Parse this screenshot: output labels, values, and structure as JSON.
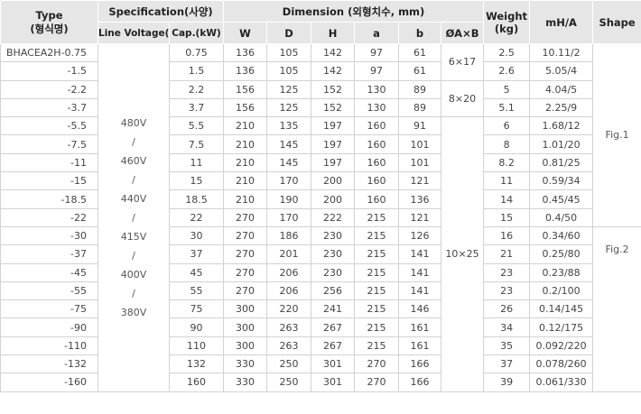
{
  "header": {
    "type": "Type",
    "type_kr": "(형식명)",
    "specification": "Specification(사양)",
    "line_voltage": "Line Voltage(V)",
    "capacity": "Cap.(kW)",
    "dimension": "Dimension (외형치수, mm)",
    "w": "W",
    "d": "D",
    "h": "H",
    "a": "a",
    "b": "b",
    "axb": "ØA×B",
    "weight": "Weight",
    "weight_unit": "(kg)",
    "mh": "mH/A",
    "shape": "Shape"
  },
  "voltage": [
    "480V",
    "/",
    "460V",
    "/",
    "440V",
    "/",
    "415V",
    "/",
    "400V",
    "/",
    "380V"
  ],
  "axb_groups": [
    "6×17",
    "8×20",
    "10×25"
  ],
  "shapes": [
    "Fig.1",
    "Fig.2"
  ],
  "rows": [
    {
      "type": "BHACEA2H-0.75",
      "cap": "0.75",
      "w": "136",
      "d": "105",
      "h": "142",
      "a": "97",
      "b": "61",
      "weight": "2.5",
      "mh": "10.11/2"
    },
    {
      "type": "-1.5",
      "cap": "1.5",
      "w": "136",
      "d": "105",
      "h": "142",
      "a": "97",
      "b": "61",
      "weight": "2.6",
      "mh": "5.05/4"
    },
    {
      "type": "-2.2",
      "cap": "2.2",
      "w": "156",
      "d": "125",
      "h": "152",
      "a": "130",
      "b": "89",
      "weight": "5",
      "mh": "4.04/5"
    },
    {
      "type": "-3.7",
      "cap": "3.7",
      "w": "156",
      "d": "125",
      "h": "152",
      "a": "130",
      "b": "89",
      "weight": "5.1",
      "mh": "2.25/9"
    },
    {
      "type": "-5.5",
      "cap": "5.5",
      "w": "210",
      "d": "135",
      "h": "197",
      "a": "160",
      "b": "91",
      "weight": "6",
      "mh": "1.68/12"
    },
    {
      "type": "-7.5",
      "cap": "7.5",
      "w": "210",
      "d": "145",
      "h": "197",
      "a": "160",
      "b": "101",
      "weight": "8",
      "mh": "1.01/20"
    },
    {
      "type": "-11",
      "cap": "11",
      "w": "210",
      "d": "145",
      "h": "197",
      "a": "160",
      "b": "101",
      "weight": "8.2",
      "mh": "0.81/25"
    },
    {
      "type": "-15",
      "cap": "15",
      "w": "210",
      "d": "170",
      "h": "200",
      "a": "160",
      "b": "121",
      "weight": "11",
      "mh": "0.59/34"
    },
    {
      "type": "-18.5",
      "cap": "18.5",
      "w": "210",
      "d": "190",
      "h": "200",
      "a": "160",
      "b": "136",
      "weight": "14",
      "mh": "0.45/45"
    },
    {
      "type": "-22",
      "cap": "22",
      "w": "270",
      "d": "170",
      "h": "222",
      "a": "215",
      "b": "121",
      "weight": "15",
      "mh": "0.4/50"
    },
    {
      "type": "-30",
      "cap": "30",
      "w": "270",
      "d": "186",
      "h": "230",
      "a": "215",
      "b": "126",
      "weight": "16",
      "mh": "0.34/60"
    },
    {
      "type": "-37",
      "cap": "37",
      "w": "270",
      "d": "201",
      "h": "230",
      "a": "215",
      "b": "141",
      "weight": "21",
      "mh": "0.25/80"
    },
    {
      "type": "-45",
      "cap": "45",
      "w": "270",
      "d": "206",
      "h": "230",
      "a": "215",
      "b": "141",
      "weight": "23",
      "mh": "0.23/88"
    },
    {
      "type": "-55",
      "cap": "55",
      "w": "270",
      "d": "206",
      "h": "256",
      "a": "215",
      "b": "141",
      "weight": "23",
      "mh": "0.2/100"
    },
    {
      "type": "-75",
      "cap": "75",
      "w": "300",
      "d": "220",
      "h": "241",
      "a": "215",
      "b": "146",
      "weight": "26",
      "mh": "0.14/145"
    },
    {
      "type": "-90",
      "cap": "90",
      "w": "300",
      "d": "263",
      "h": "267",
      "a": "215",
      "b": "161",
      "weight": "34",
      "mh": "0.12/175"
    },
    {
      "type": "-110",
      "cap": "110",
      "w": "300",
      "d": "263",
      "h": "267",
      "a": "215",
      "b": "161",
      "weight": "35",
      "mh": "0.092/220"
    },
    {
      "type": "-132",
      "cap": "132",
      "w": "330",
      "d": "250",
      "h": "301",
      "a": "270",
      "b": "166",
      "weight": "37",
      "mh": "0.078/260"
    },
    {
      "type": "-160",
      "cap": "160",
      "w": "330",
      "d": "250",
      "h": "301",
      "a": "270",
      "b": "166",
      "weight": "39",
      "mh": "0.061/330"
    }
  ]
}
